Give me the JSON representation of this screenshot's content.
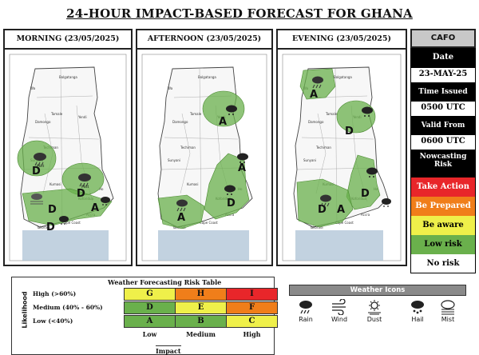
{
  "title": "24-HOUR IMPACT-BASED FORECAST FOR GHANA",
  "panels": [
    {
      "label": "MORNING (23/05/2025)",
      "cities": [
        "Bolgatanga",
        "Wa",
        "Tamale",
        "Yendi",
        "Damongo",
        "Sunyani",
        "Kumasi",
        "Techiman",
        "Koforidua",
        "Ho",
        "Accra",
        "Cape Coast",
        "Takoradi"
      ]
    },
    {
      "label": "AFTERNOON (23/05/2025)",
      "cities": [
        "Bolgatanga",
        "Wa",
        "Tamale",
        "Yendi",
        "Damongo",
        "Sunyani",
        "Kumasi",
        "Techiman",
        "Koforidua",
        "Ho",
        "Accra",
        "Cape Coast",
        "Takoradi"
      ]
    },
    {
      "label": "EVENING (23/05/2025)",
      "cities": [
        "Bolgatanga",
        "Wa",
        "Tamale",
        "Yendi",
        "Damongo",
        "Sunyani",
        "Kumasi",
        "Techiman",
        "Koforidua",
        "Ho",
        "Accra",
        "Cape Coast",
        "Takoradi"
      ]
    }
  ],
  "zones": {
    "morning": [
      {
        "label": "D",
        "icon": "rain-icon",
        "note": "Mist"
      },
      {
        "label": "D",
        "icon": "rain-icon",
        "note": "Mist"
      },
      {
        "label": "D",
        "icon": "mist-icon",
        "note": ""
      },
      {
        "label": "D",
        "icon": "hail-icon",
        "note": ""
      },
      {
        "label": "A",
        "icon": "hail-icon",
        "note": ""
      }
    ],
    "afternoon": [
      {
        "label": "A",
        "icon": "hail-icon"
      },
      {
        "label": "A",
        "icon": "hail-icon"
      },
      {
        "label": "D",
        "icon": "hail-icon"
      },
      {
        "label": "A",
        "icon": "rain-icon"
      }
    ],
    "evening": [
      {
        "label": "A",
        "icon": "rain-icon"
      },
      {
        "label": "D",
        "icon": "hail-icon"
      },
      {
        "label": "D",
        "icon": "hail-icon"
      },
      {
        "label": "D",
        "icon": "rain-icon"
      },
      {
        "label": "A",
        "icon": "hail-icon"
      }
    ]
  },
  "sidebar": {
    "agency": "CAFO",
    "date_label": "Date",
    "date_value": "23-MAY-25",
    "time_issued_label": "Time Issued",
    "time_issued_value": "0500 UTC",
    "valid_from_label": "Valid From",
    "valid_from_value": "0600 UTC",
    "nowcasting_label": "Nowcasting Risk",
    "risks": [
      {
        "label": "Take Action",
        "bg": "#e8262a",
        "fg": "#ffffff"
      },
      {
        "label": "Be Prepared",
        "bg": "#f07e1a",
        "fg": "#ffffff"
      },
      {
        "label": "Be aware",
        "bg": "#eff04a",
        "fg": "#000000"
      },
      {
        "label": "Low risk",
        "bg": "#6ab04c",
        "fg": "#000000"
      },
      {
        "label": "No risk",
        "bg": "#ffffff",
        "fg": "#000000"
      }
    ]
  },
  "risk_table": {
    "title": "Weather Forecasting Risk Table",
    "likelihood_label": "Likelihood",
    "impact_label": "Impact",
    "rows": [
      {
        "label": "High (>60%)",
        "cells": [
          "G",
          "H",
          "I"
        ]
      },
      {
        "label": "Medium (40% - 60%)",
        "cells": [
          "D",
          "E",
          "F"
        ]
      },
      {
        "label": "Low (<40%)",
        "cells": [
          "A",
          "B",
          "C"
        ]
      }
    ],
    "columns": [
      "Low",
      "Medium",
      "High"
    ],
    "colors": [
      [
        "#eff04a",
        "#f07e1a",
        "#e8262a"
      ],
      [
        "#6ab04c",
        "#eff04a",
        "#f07e1a"
      ],
      [
        "#6ab04c",
        "#6ab04c",
        "#eff04a"
      ]
    ]
  },
  "weather_icons": {
    "title": "Weather Icons",
    "items": [
      {
        "label": "Rain",
        "icon": "rain-icon"
      },
      {
        "label": "Wind",
        "icon": "wind-icon"
      },
      {
        "label": "Dust",
        "icon": "dust-icon"
      },
      {
        "label": "Hail",
        "icon": "hail-icon"
      },
      {
        "label": "Mist",
        "icon": "mist-icon"
      }
    ]
  }
}
